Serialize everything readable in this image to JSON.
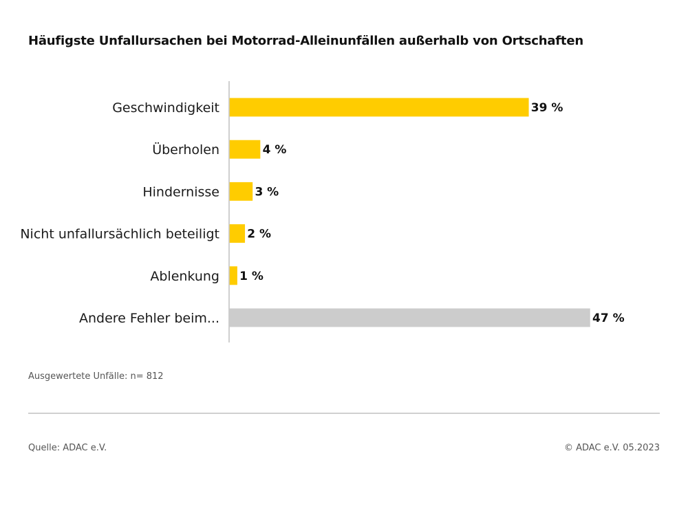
{
  "title": "Häufigste Unfallursachen bei Motorrad-Alleinunfällen außerhalb von Ortschaften",
  "note": "Ausgewertete Unfälle: n= 812",
  "source": "Quelle: ADAC e.V.",
  "copyright": "© ADAC e.V. 05.2023",
  "colors": {
    "primary": "#FFCC00",
    "other": "#CCCCCC",
    "axis": "#BFBFBF"
  },
  "chart_data": {
    "type": "bar",
    "orientation": "horizontal",
    "title": "Häufigste Unfallursachen bei Motorrad-Alleinunfällen außerhalb von Ortschaften",
    "categories": [
      "Geschwindigkeit",
      "Überholen",
      "Hindernisse",
      "Nicht unfallursächlich beteiligt",
      "Ablenkung",
      "Andere Fehler beim..."
    ],
    "values": [
      39,
      4,
      3,
      2,
      1,
      47
    ],
    "value_labels": [
      "39 %",
      "4 %",
      "3 %",
      "2 %",
      "1 %",
      "47 %"
    ],
    "bar_colors": [
      "#FFCC00",
      "#FFCC00",
      "#FFCC00",
      "#FFCC00",
      "#FFCC00",
      "#CCCCCC"
    ],
    "xlim": [
      0,
      47
    ],
    "grid": false,
    "legend": "none"
  }
}
